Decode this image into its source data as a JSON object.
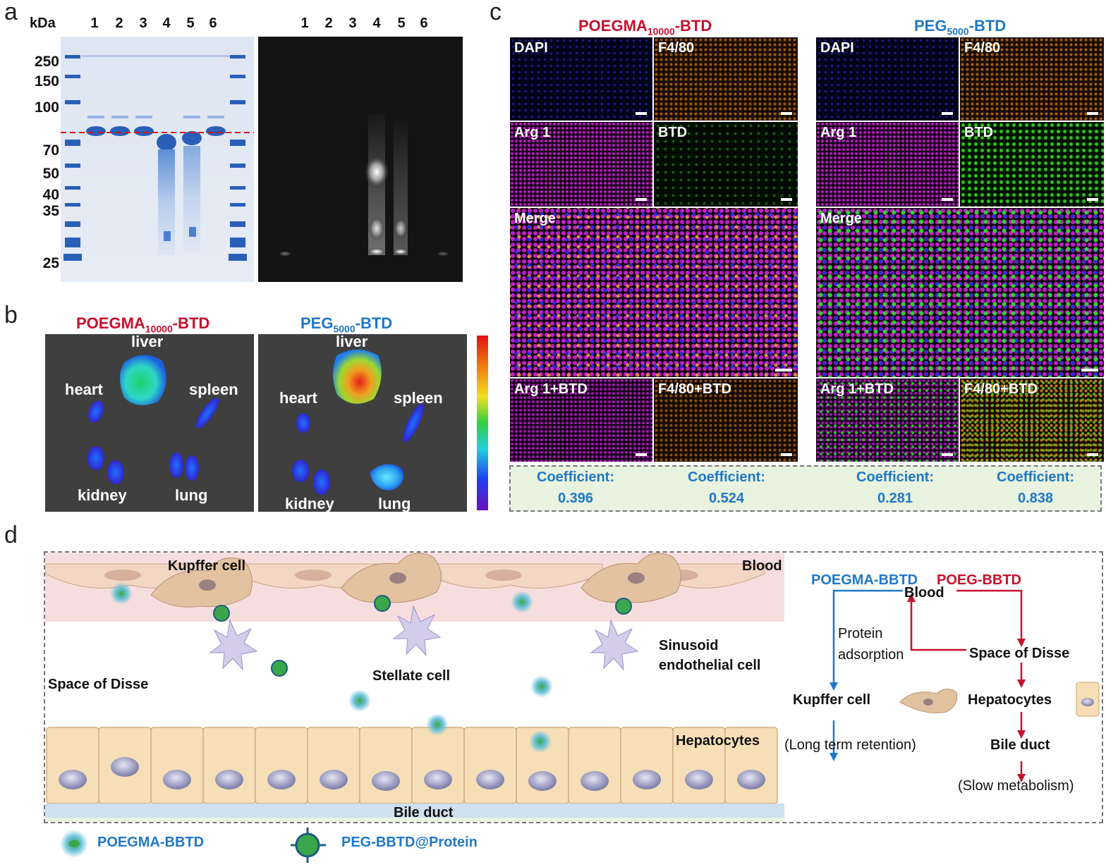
{
  "panels": {
    "a": "a",
    "b": "b",
    "c": "c",
    "d": "d"
  },
  "panel_a": {
    "kda_label": "kDa",
    "lanes_left": [
      "1",
      "2",
      "3",
      "4",
      "5",
      "6"
    ],
    "lanes_right": [
      "1",
      "2",
      "3",
      "4",
      "5",
      "6"
    ],
    "markers": [
      "250",
      "150",
      "100",
      "70",
      "50",
      "40",
      "35",
      "25"
    ]
  },
  "panel_b": {
    "left_title_main": "POEGMA",
    "left_title_sub": "10000",
    "left_title_tail": "-BTD",
    "right_title_main": "PEG",
    "right_title_sub": "5000",
    "right_title_tail": "-BTD",
    "left_organs": {
      "liver": "liver",
      "heart": "heart",
      "spleen": "spleen",
      "kidney": "kidney",
      "lung": "lung"
    },
    "right_organs": {
      "liver": "liver",
      "heart": "heart",
      "spleen": "spleen",
      "kidney": "kidney",
      "lung": "lung"
    }
  },
  "panel_c": {
    "left_title_main": "POEGMA",
    "left_title_sub": "10000",
    "left_title_tail": "-BTD",
    "right_title_main": "PEG",
    "right_title_sub": "5000",
    "right_title_tail": "-BTD",
    "tiles": {
      "dapi": "DAPI",
      "f480": "F4/80",
      "arg1": "Arg 1",
      "btd": "BTD",
      "merge": "Merge",
      "arg1_btd": "Arg 1+BTD",
      "f480_btd": "F4/80+BTD"
    },
    "coefficients": [
      {
        "label": "Coefficient:",
        "value": "0.396"
      },
      {
        "label": "Coefficient:",
        "value": "0.524"
      },
      {
        "label": "Coefficient:",
        "value": "0.281"
      },
      {
        "label": "Coefficient:",
        "value": "0.838"
      }
    ]
  },
  "panel_d": {
    "kupffer": "Kupffer cell",
    "blood": "Blood",
    "sinusoid_1": "Sinusoid",
    "sinusoid_2": "endothelial cell",
    "disse": "Space of Disse",
    "stellate": "Stellate cell",
    "hepatocytes": "Hepatocytes",
    "bile": "Bile duct",
    "flow": {
      "poegma": "POEGMA-BBTD",
      "poeg": "POEG-BBTD",
      "blood": "Blood",
      "protein_1": "Protein",
      "protein_2": "adsorption",
      "disse": "Space of Disse",
      "kupffer": "Kupffer cell",
      "hepatocytes": "Hepatocytes",
      "bile": "Bile duct",
      "long_term": "(Long term retention)",
      "slow": "(Slow metabolism)"
    },
    "legend": {
      "poegma": "POEGMA-BBTD",
      "peg": "PEG-BBTD@Protein"
    }
  },
  "colors": {
    "red": "#c8102e",
    "blue": "#1f78c8",
    "gel_blue": "#2a5fb8",
    "blood_band": "#f7dede",
    "hepatocyte": "#f6dfb6",
    "box_green": "#e8f3df"
  }
}
